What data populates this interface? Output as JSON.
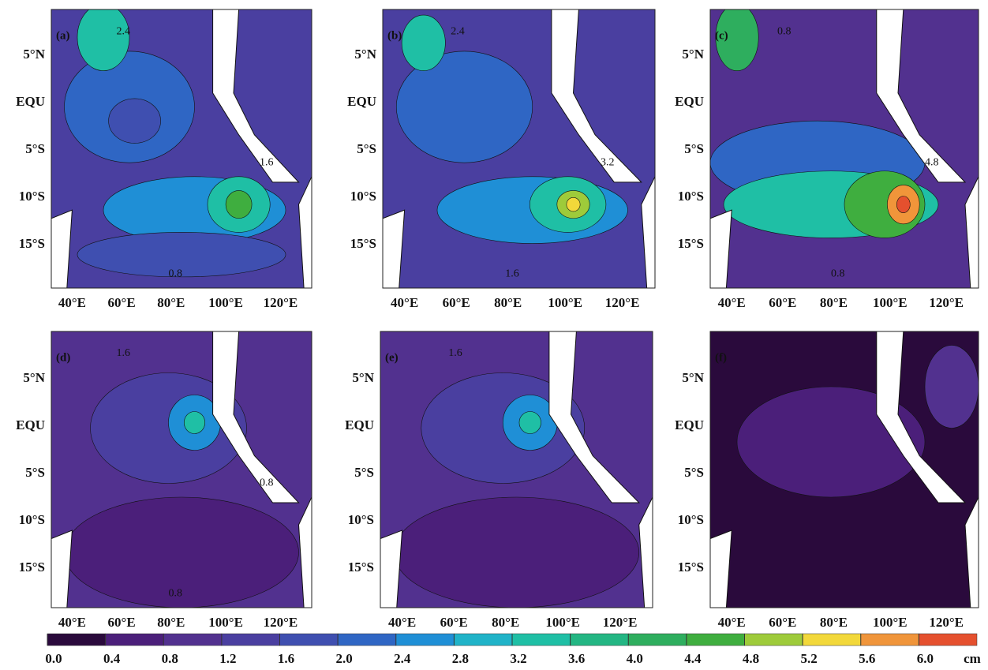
{
  "panels": [
    {
      "label": "(a)",
      "lat_labels": [
        "5°N",
        "EQU",
        "5°S",
        "10°S",
        "15°S"
      ],
      "lon_labels": [
        "40°E",
        "60°E",
        "80°E",
        "100°E",
        "120°E"
      ],
      "contour_labels": [
        "2.4",
        "1.6",
        "0.8"
      ]
    },
    {
      "label": "(b)",
      "lat_labels": [
        "5°N",
        "EQU",
        "5°S",
        "10°S",
        "15°S"
      ],
      "lon_labels": [
        "40°E",
        "60°E",
        "80°E",
        "100°E",
        "120°E"
      ],
      "contour_labels": [
        "2.4",
        "3.2",
        "1.6"
      ]
    },
    {
      "label": "(c)",
      "lat_labels": [
        "5°N",
        "EQU",
        "5°S",
        "10°S",
        "15°S"
      ],
      "lon_labels": [
        "40°E",
        "60°E",
        "80°E",
        "100°E",
        "120°E"
      ],
      "contour_labels": [
        "0.8",
        "4.8",
        "0.8"
      ]
    },
    {
      "label": "(d)",
      "lat_labels": [
        "5°N",
        "EQU",
        "5°S",
        "10°S",
        "15°S"
      ],
      "lon_labels": [
        "40°E",
        "60°E",
        "80°E",
        "100°E",
        "120°E"
      ],
      "contour_labels": [
        "1.6",
        "0.8",
        "0.8"
      ]
    },
    {
      "label": "(e)",
      "lat_labels": [
        "5°N",
        "EQU",
        "5°S",
        "10°S",
        "15°S"
      ],
      "lon_labels": [
        "40°E",
        "60°E",
        "80°E",
        "100°E",
        "120°E"
      ],
      "contour_labels": [
        "1.6"
      ]
    },
    {
      "label": "(f)",
      "lat_labels": [
        "5°N",
        "EQU",
        "5°S",
        "10°S",
        "15°S"
      ],
      "lon_labels": [
        "40°E",
        "60°E",
        "80°E",
        "100°E",
        "120°E"
      ],
      "contour_labels": []
    }
  ],
  "colorbar": {
    "unit": "cm",
    "ticks": [
      {
        "value": 0,
        "label": "0.0"
      },
      0.4,
      0.8,
      1.2,
      1.6,
      {
        "value": 2,
        "label": "2.0"
      },
      2.4,
      2.8,
      3.2,
      3.6,
      {
        "value": 4,
        "label": "4.0"
      },
      4.4,
      4.8,
      5.2,
      5.6,
      {
        "value": 6,
        "label": "6.0"
      }
    ],
    "colors": [
      "#2a0a3c",
      "#4b1f7a",
      "#52318f",
      "#4a3fa0",
      "#3f4fb0",
      "#2f66c4",
      "#1f8fd6",
      "#20b3c8",
      "#1fbfa5",
      "#23b683",
      "#2eae5e",
      "#3fae3f",
      "#9ecb3a",
      "#f2d83a",
      "#f0953a",
      "#e5502e"
    ]
  }
}
